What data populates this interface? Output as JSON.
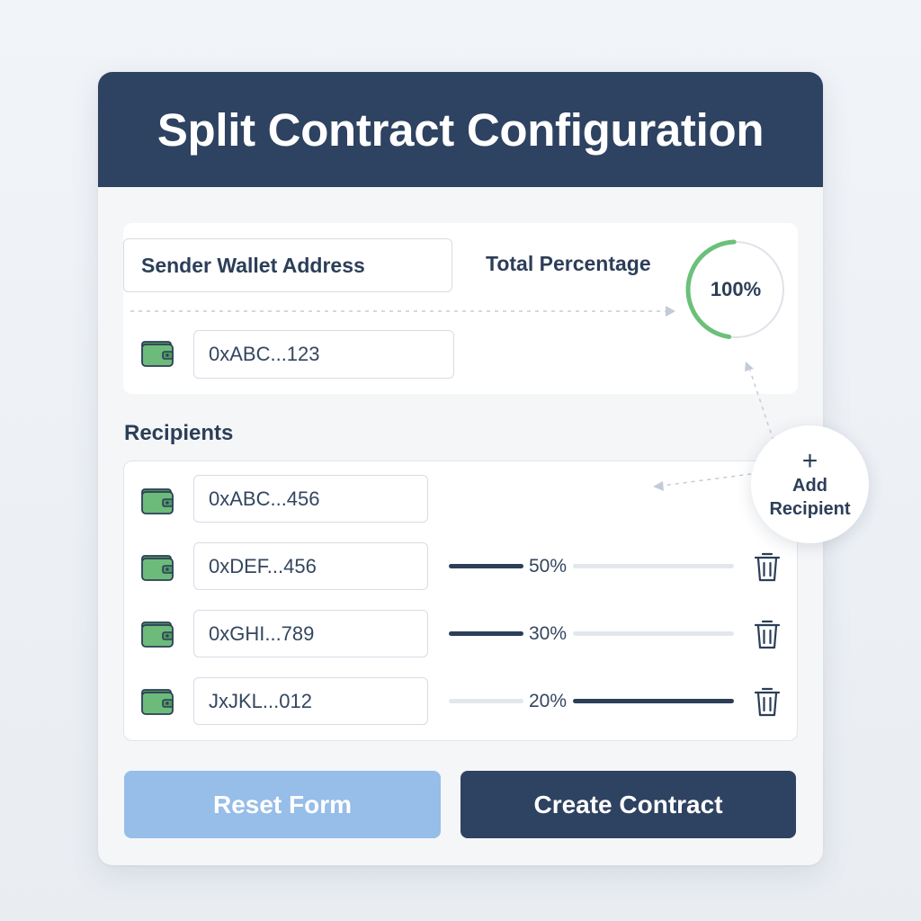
{
  "title": "Split Contract Configuration",
  "sender": {
    "label": "Sender Wallet Address",
    "address": "0xABC...123"
  },
  "total": {
    "label": "Total Percentage",
    "value_text": "100%",
    "value": 100
  },
  "recipients": {
    "title": "Recipients",
    "items": [
      {
        "address": "0xABC...456"
      },
      {
        "address": "0xDEF...456",
        "percent_text": "50%",
        "percent": 50
      },
      {
        "address": "0xGHI...789",
        "percent_text": "30%",
        "percent": 30
      },
      {
        "address": "JxJKL...012",
        "percent_text": "20%",
        "percent": 20
      }
    ]
  },
  "add_recipient": {
    "icon": "plus-icon",
    "label_line1": "Add",
    "label_line2": "Recipient"
  },
  "buttons": {
    "reset": "Reset Form",
    "create": "Create Contract"
  },
  "icons": {
    "wallet": "wallet-icon",
    "delete": "trash-icon"
  },
  "colors": {
    "header": "#2e4261",
    "wallet_green": "#6dbb7a",
    "gauge_green": "#6cc07a",
    "reset_button": "#97bde9",
    "create_button": "#2e4261"
  }
}
